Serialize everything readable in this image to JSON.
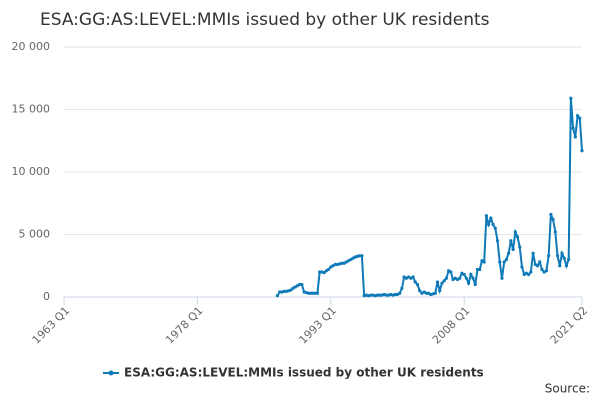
{
  "chart_data": {
    "type": "line",
    "title": "ESA:GG:AS:LEVEL:MMIs issued by other UK residents",
    "source": "Source:",
    "xlim": [
      "1963 Q1",
      "2021 Q2"
    ],
    "xticks": [
      "1963 Q1",
      "1978 Q1",
      "1993 Q1",
      "2008 Q1",
      "2021 Q2"
    ],
    "ylim": [
      0,
      20000
    ],
    "yticks": [
      0,
      {
        "value": 5000,
        "label": "5 000"
      },
      {
        "value": 10000,
        "label": "10 000"
      },
      {
        "value": 15000,
        "label": "15 000"
      },
      {
        "value": 20000,
        "label": "20 000"
      }
    ],
    "grid": true,
    "legend": "bottom",
    "x": [
      "1987 Q1",
      "1987 Q2",
      "1987 Q3",
      "1987 Q4",
      "1988 Q1",
      "1988 Q2",
      "1988 Q3",
      "1988 Q4",
      "1989 Q1",
      "1989 Q2",
      "1989 Q3",
      "1989 Q4",
      "1990 Q1",
      "1990 Q2",
      "1990 Q3",
      "1990 Q4",
      "1991 Q1",
      "1991 Q2",
      "1991 Q3",
      "1991 Q4",
      "1992 Q1",
      "1992 Q2",
      "1992 Q3",
      "1992 Q4",
      "1993 Q1",
      "1993 Q2",
      "1993 Q3",
      "1993 Q4",
      "1994 Q1",
      "1994 Q2",
      "1994 Q3",
      "1994 Q4",
      "1995 Q1",
      "1995 Q2",
      "1995 Q3",
      "1995 Q4",
      "1996 Q1",
      "1996 Q2",
      "1996 Q3",
      "1996 Q4",
      "1997 Q1",
      "1997 Q2",
      "1997 Q3",
      "1997 Q4",
      "1998 Q1",
      "1998 Q2",
      "1998 Q3",
      "1998 Q4",
      "1999 Q1",
      "1999 Q2",
      "1999 Q3",
      "1999 Q4",
      "2000 Q1",
      "2000 Q2",
      "2000 Q3",
      "2000 Q4",
      "2001 Q1",
      "2001 Q2",
      "2001 Q3",
      "2001 Q4",
      "2002 Q1",
      "2002 Q2",
      "2002 Q3",
      "2002 Q4",
      "2003 Q1",
      "2003 Q2",
      "2003 Q3",
      "2003 Q4",
      "2004 Q1",
      "2004 Q2",
      "2004 Q3",
      "2004 Q4",
      "2005 Q1",
      "2005 Q2",
      "2005 Q3",
      "2005 Q4",
      "2006 Q1",
      "2006 Q2",
      "2006 Q3",
      "2006 Q4",
      "2007 Q1",
      "2007 Q2",
      "2007 Q3",
      "2007 Q4",
      "2008 Q1",
      "2008 Q2",
      "2008 Q3",
      "2008 Q4",
      "2009 Q1",
      "2009 Q2",
      "2009 Q3",
      "2009 Q4",
      "2010 Q1",
      "2010 Q2",
      "2010 Q3",
      "2010 Q4",
      "2011 Q1",
      "2011 Q2",
      "2011 Q3",
      "2011 Q4",
      "2012 Q1",
      "2012 Q2",
      "2012 Q3",
      "2012 Q4",
      "2013 Q1",
      "2013 Q2",
      "2013 Q3",
      "2013 Q4",
      "2014 Q1",
      "2014 Q2",
      "2014 Q3",
      "2014 Q4",
      "2015 Q1",
      "2015 Q2",
      "2015 Q3",
      "2015 Q4",
      "2016 Q1",
      "2016 Q2",
      "2016 Q3",
      "2016 Q4",
      "2017 Q1",
      "2017 Q2",
      "2017 Q3",
      "2017 Q4",
      "2018 Q1",
      "2018 Q2",
      "2018 Q3",
      "2018 Q4",
      "2019 Q1",
      "2019 Q2",
      "2019 Q3",
      "2019 Q4",
      "2020 Q1",
      "2020 Q2",
      "2020 Q3",
      "2020 Q4",
      "2021 Q1",
      "2021 Q2"
    ],
    "series": [
      {
        "name": "ESA:GG:AS:LEVEL:MMIs issued by other UK residents",
        "color": "#0f7ab8",
        "values": [
          100,
          400,
          400,
          450,
          450,
          500,
          550,
          700,
          800,
          900,
          1000,
          1000,
          400,
          350,
          300,
          300,
          300,
          300,
          300,
          2000,
          2000,
          1950,
          2100,
          2200,
          2400,
          2500,
          2600,
          2600,
          2650,
          2700,
          2700,
          2800,
          2900,
          3000,
          3100,
          3200,
          3250,
          3300,
          3300,
          100,
          150,
          100,
          150,
          150,
          100,
          150,
          150,
          150,
          200,
          150,
          150,
          200,
          150,
          200,
          200,
          300,
          700,
          1600,
          1500,
          1600,
          1500,
          1600,
          1200,
          1000,
          500,
          300,
          400,
          300,
          300,
          200,
          250,
          300,
          1200,
          500,
          1100,
          1300,
          1500,
          2100,
          2000,
          1400,
          1500,
          1400,
          1500,
          1900,
          1800,
          1500,
          1100,
          1800,
          1500,
          1000,
          2200,
          2200,
          2900,
          2800,
          6500,
          5800,
          6300,
          5800,
          5500,
          4500,
          2800,
          1500,
          2800,
          3000,
          3500,
          4500,
          3800,
          5200,
          4800,
          4000,
          2400,
          1800,
          1900,
          1800,
          2000,
          3500,
          2600,
          2500,
          2800,
          2200,
          2000,
          2100,
          3300,
          6600,
          6200,
          5200,
          3300,
          2500,
          3500,
          3100,
          2500,
          3000,
          15900,
          13500,
          12800,
          14500,
          14300,
          11700
        ]
      }
    ]
  }
}
